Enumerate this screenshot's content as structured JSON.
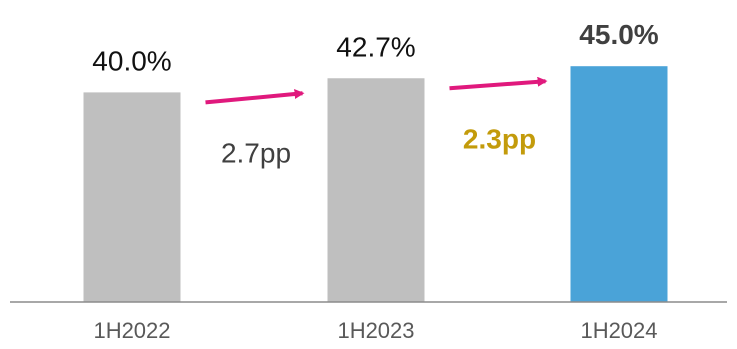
{
  "chart_data": {
    "type": "bar",
    "categories": [
      "1H2022",
      "1H2023",
      "1H2024"
    ],
    "values": [
      40.0,
      42.7,
      45.0
    ],
    "value_labels": [
      "40.0%",
      "42.7%",
      "45.0%"
    ],
    "value_label_bold": [
      false,
      false,
      true
    ],
    "bar_colors": [
      "#bfbfbf",
      "#bfbfbf",
      "#4aa3d8"
    ],
    "title": "",
    "xlabel": "",
    "ylabel": "",
    "ylim": [
      0,
      50
    ],
    "grid": false,
    "legend": "none",
    "annotations": [
      {
        "from": 0,
        "to": 1,
        "text": "2.7pp",
        "color": "#404040",
        "bold": false,
        "arrow_color": "#e0197d"
      },
      {
        "from": 1,
        "to": 2,
        "text": "2.3pp",
        "color": "#c39b0b",
        "bold": true,
        "arrow_color": "#e0197d"
      }
    ]
  }
}
